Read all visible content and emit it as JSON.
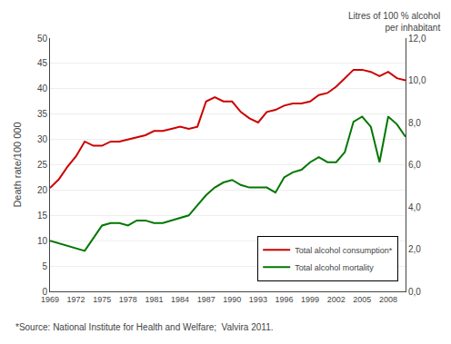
{
  "chart_data": {
    "type": "line",
    "x": [
      1969,
      1970,
      1971,
      1972,
      1973,
      1974,
      1975,
      1976,
      1977,
      1978,
      1979,
      1980,
      1981,
      1982,
      1983,
      1984,
      1985,
      1986,
      1987,
      1988,
      1989,
      1990,
      1991,
      1992,
      1993,
      1994,
      1995,
      1996,
      1997,
      1998,
      1999,
      2000,
      2001,
      2002,
      2003,
      2004,
      2005,
      2006,
      2007,
      2008,
      2009,
      2010
    ],
    "series": [
      {
        "name": "Total alcohol consumption*",
        "color": "#cc0000",
        "axis": "y2",
        "values": [
          4.9,
          5.3,
          5.9,
          6.4,
          7.1,
          6.9,
          6.9,
          7.1,
          7.1,
          7.2,
          7.3,
          7.4,
          7.6,
          7.6,
          7.7,
          7.8,
          7.7,
          7.8,
          9.0,
          9.2,
          9.0,
          9.0,
          8.5,
          8.2,
          8.0,
          8.5,
          8.6,
          8.8,
          8.9,
          8.9,
          9.0,
          9.3,
          9.4,
          9.7,
          10.1,
          10.5,
          10.5,
          10.4,
          10.2,
          10.4,
          10.1,
          10.0
        ]
      },
      {
        "name": "Total alcohol mortality",
        "color": "#007700",
        "values": [
          10.0,
          9.5,
          9.0,
          8.5,
          8.0,
          10.5,
          13.0,
          13.5,
          13.5,
          13.0,
          14.0,
          14.0,
          13.5,
          13.5,
          14.0,
          14.5,
          15.0,
          17.0,
          19.0,
          20.5,
          21.5,
          22.0,
          21.0,
          20.5,
          20.5,
          20.5,
          19.5,
          22.5,
          23.5,
          24.0,
          25.5,
          26.5,
          25.5,
          25.5,
          27.5,
          33.5,
          34.5,
          32.5,
          25.5,
          34.5,
          33.0,
          30.5
        ]
      }
    ],
    "ylabel": "Death rate/100 000",
    "y2label": "Litres of 100 % alcohol\nper inhabitant",
    "annotations": [
      {
        "text": "*Source: National Institute for Health and Welfare;  Valvira 2011."
      }
    ],
    "xlim": [
      1969,
      2010
    ],
    "xticks": [
      1969,
      1972,
      1975,
      1978,
      1981,
      1984,
      1987,
      1990,
      1993,
      1996,
      1999,
      2002,
      2005,
      2008
    ],
    "ylim": [
      0,
      50
    ],
    "yticks": [
      0,
      5,
      10,
      15,
      20,
      25,
      30,
      35,
      40,
      45,
      50
    ],
    "y2lim": [
      0.0,
      12.0
    ],
    "y2ticks": [
      {
        "value": 0.0,
        "label": "0,0"
      },
      {
        "value": 2.0,
        "label": "2,0"
      },
      {
        "value": 4.0,
        "label": "4,0"
      },
      {
        "value": 6.0,
        "label": "6,0"
      },
      {
        "value": 8.0,
        "label": "8,0"
      },
      {
        "value": 10.0,
        "label": "10,0"
      },
      {
        "value": 12.0,
        "label": "12,0"
      }
    ],
    "grid": true,
    "legend": "lower right"
  }
}
